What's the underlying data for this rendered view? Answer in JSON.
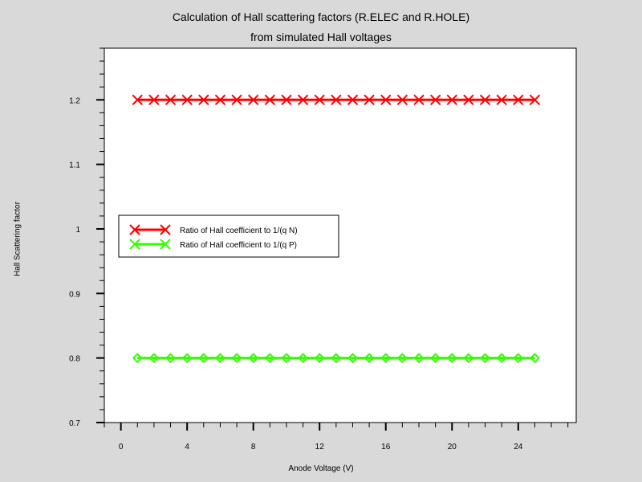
{
  "chart_data": {
    "type": "line",
    "title": "Calculation of Hall scattering factors (R.ELEC and R.HOLE)",
    "subtitle": "from simulated Hall voltages",
    "xlabel": "Anode Voltage (V)",
    "ylabel": "Hall Scattering factor",
    "xlim": [
      -1,
      27.5
    ],
    "ylim": [
      0.7,
      1.28
    ],
    "x_ticks": [
      0,
      4,
      8,
      12,
      16,
      20,
      24
    ],
    "y_ticks": [
      0.7,
      0.8,
      0.9,
      1,
      1.1,
      1.2
    ],
    "y_tick_labels": [
      "0.7",
      "0.8",
      "0.9",
      "1",
      "1.1",
      "1.2"
    ],
    "x": [
      1,
      2,
      3,
      4,
      5,
      6,
      7,
      8,
      9,
      10,
      11,
      12,
      13,
      14,
      15,
      16,
      17,
      18,
      19,
      20,
      21,
      22,
      23,
      24,
      25
    ],
    "series": [
      {
        "name": "Ratio of Hall coefficient to 1/(q N)",
        "color": "#ff0000",
        "marker": "x",
        "values": [
          1.2,
          1.2,
          1.2,
          1.2,
          1.2,
          1.2,
          1.2,
          1.2,
          1.2,
          1.2,
          1.2,
          1.2,
          1.2,
          1.2,
          1.2,
          1.2,
          1.2,
          1.2,
          1.2,
          1.2,
          1.2,
          1.2,
          1.2,
          1.2,
          1.2
        ]
      },
      {
        "name": "Ratio of Hall coefficient to 1/(q P)",
        "color": "#33ff00",
        "marker": "diamond",
        "values": [
          0.8,
          0.8,
          0.8,
          0.8,
          0.8,
          0.8,
          0.8,
          0.8,
          0.8,
          0.8,
          0.8,
          0.8,
          0.8,
          0.8,
          0.8,
          0.8,
          0.8,
          0.8,
          0.8,
          0.8,
          0.8,
          0.8,
          0.8,
          0.8,
          0.8
        ]
      }
    ],
    "legend_position": "center-left",
    "grid": false
  }
}
